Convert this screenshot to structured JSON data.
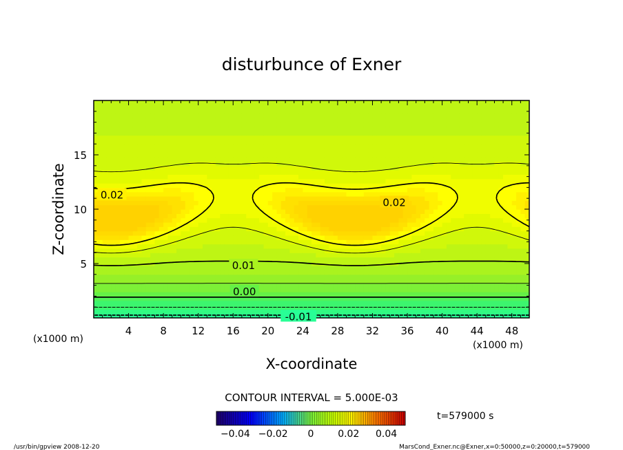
{
  "chart_data": {
    "type": "heatmap",
    "title": "disturbunce of Exner",
    "xlabel": "X-coordinate",
    "ylabel": "Z-coordinate",
    "xlim": [
      0,
      50
    ],
    "ylim": [
      0,
      20
    ],
    "x_ticks": [
      4,
      8,
      12,
      16,
      20,
      24,
      28,
      32,
      36,
      40,
      44,
      48
    ],
    "y_ticks": [
      5,
      10,
      15
    ],
    "x_unit_left": "(x1000 m)",
    "x_unit_right": "(x1000 m)",
    "contour_interval_text": "CONTOUR INTERVAL = 5.000E-03",
    "contour_labels": [
      {
        "text": "0.02",
        "x": 2.1,
        "y": 11.3
      },
      {
        "text": "0.02",
        "x": 34.5,
        "y": 10.6
      },
      {
        "text": "0.01",
        "x": 17.2,
        "y": 4.8
      },
      {
        "text": "0.00",
        "x": 17.3,
        "y": 2.4
      },
      {
        "text": "-0.01",
        "x": 23.5,
        "y": 0.1
      }
    ],
    "colorbar": {
      "min": -0.05,
      "max": 0.05,
      "tick_values": [
        -0.04,
        -0.02,
        0,
        0.02,
        0.04
      ],
      "tick_labels": [
        "−0.04",
        "−0.02",
        "0",
        "0.02",
        "0.04"
      ]
    },
    "time_label": "t=579000 s",
    "footer_left": "/usr/bin/gpview   2008-12-20",
    "footer_right": "MarsCond_Exner.nc@Exner,x=0:50000,z=0:20000,t=579000"
  }
}
